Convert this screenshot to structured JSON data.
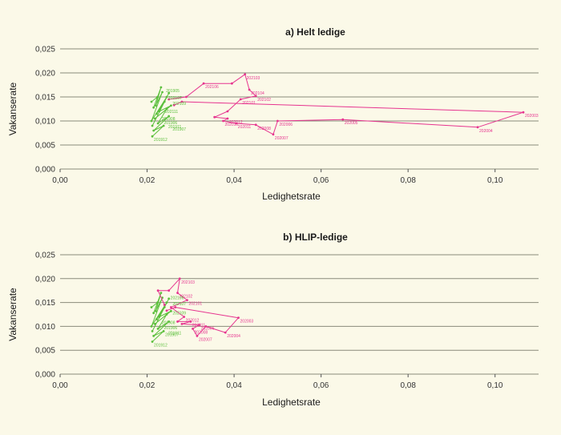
{
  "chart_data": [
    {
      "type": "line",
      "title": "a) Helt ledige",
      "xlabel": "Ledighetsrate",
      "ylabel": "Vakanserate",
      "xlim": [
        0,
        0.11
      ],
      "ylim": [
        0,
        0.025
      ],
      "grid": true,
      "x_ticks": [
        "0,00",
        "0,02",
        "0,04",
        "0,06",
        "0,08",
        "0,10"
      ],
      "y_ticks": [
        "0,000",
        "0,005",
        "0,010",
        "0,015",
        "0,020",
        "0,025"
      ],
      "colors": {
        "green": "#5bbf3c",
        "pink": "#e6348f"
      },
      "series": [
        {
          "color": "green",
          "points": [
            {
              "x": 0.021,
              "y": 0.014,
              "label": ""
            },
            {
              "x": 0.0224,
              "y": 0.015,
              "label": ""
            },
            {
              "x": 0.0215,
              "y": 0.0128,
              "label": ""
            },
            {
              "x": 0.0232,
              "y": 0.017,
              "label": ""
            },
            {
              "x": 0.022,
              "y": 0.0132,
              "label": ""
            },
            {
              "x": 0.0235,
              "y": 0.016,
              "label": ""
            },
            {
              "x": 0.021,
              "y": 0.01,
              "label": ""
            },
            {
              "x": 0.0245,
              "y": 0.015,
              "label": ""
            },
            {
              "x": 0.0222,
              "y": 0.0115,
              "label": ""
            },
            {
              "x": 0.024,
              "y": 0.014,
              "label": ""
            },
            {
              "x": 0.0212,
              "y": 0.009,
              "label": ""
            },
            {
              "x": 0.025,
              "y": 0.0158,
              "label": ""
            },
            {
              "x": 0.0228,
              "y": 0.012,
              "label": ""
            },
            {
              "x": 0.0255,
              "y": 0.0132,
              "label": ""
            },
            {
              "x": 0.0218,
              "y": 0.0105,
              "label": ""
            },
            {
              "x": 0.0245,
              "y": 0.0125,
              "label": ""
            },
            {
              "x": 0.0225,
              "y": 0.0095,
              "label": ""
            },
            {
              "x": 0.025,
              "y": 0.011,
              "label": ""
            },
            {
              "x": 0.0215,
              "y": 0.008,
              "label": ""
            },
            {
              "x": 0.0238,
              "y": 0.009,
              "label": ""
            },
            {
              "x": 0.0212,
              "y": 0.0068,
              "label": "201912"
            }
          ]
        },
        {
          "color": "pink",
          "points": [
            {
              "x": 0.025,
              "y": 0.0145,
              "label": ""
            },
            {
              "x": 0.029,
              "y": 0.015,
              "label": ""
            },
            {
              "x": 0.033,
              "y": 0.0178,
              "label": "202106"
            },
            {
              "x": 0.0395,
              "y": 0.0178,
              "label": ""
            },
            {
              "x": 0.0425,
              "y": 0.0197,
              "label": "202103"
            },
            {
              "x": 0.0435,
              "y": 0.0165,
              "label": "202104"
            },
            {
              "x": 0.045,
              "y": 0.0152,
              "label": "202102"
            },
            {
              "x": 0.0415,
              "y": 0.0145,
              "label": "202101"
            },
            {
              "x": 0.0385,
              "y": 0.012,
              "label": ""
            },
            {
              "x": 0.0355,
              "y": 0.0108,
              "label": ""
            },
            {
              "x": 0.0385,
              "y": 0.0105,
              "label": "202012"
            },
            {
              "x": 0.0375,
              "y": 0.01,
              "label": "202010"
            },
            {
              "x": 0.0405,
              "y": 0.0095,
              "label": "202011"
            },
            {
              "x": 0.045,
              "y": 0.0092,
              "label": "202008"
            },
            {
              "x": 0.049,
              "y": 0.0072,
              "label": "202007"
            },
            {
              "x": 0.05,
              "y": 0.01,
              "label": "202006"
            },
            {
              "x": 0.065,
              "y": 0.0103,
              "label": "202005"
            },
            {
              "x": 0.096,
              "y": 0.0087,
              "label": "202004"
            },
            {
              "x": 0.1065,
              "y": 0.0118,
              "label": "202003"
            },
            {
              "x": 0.028,
              "y": 0.014,
              "label": ""
            },
            {
              "x": 0.0262,
              "y": 0.0133,
              "label": ""
            }
          ]
        }
      ],
      "extra_labels": [
        {
          "x": 0.0245,
          "y": 0.0148,
          "label": "202107",
          "color": "green"
        },
        {
          "x": 0.0255,
          "y": 0.0137,
          "label": "202109",
          "color": "green"
        },
        {
          "x": 0.0238,
          "y": 0.012,
          "label": "202111",
          "color": "green"
        },
        {
          "x": 0.0235,
          "y": 0.0097,
          "label": "201906",
          "color": "green"
        },
        {
          "x": 0.0255,
          "y": 0.0083,
          "label": "201907",
          "color": "green"
        },
        {
          "x": 0.0245,
          "y": 0.0088,
          "label": "201911",
          "color": "green"
        },
        {
          "x": 0.023,
          "y": 0.0105,
          "label": "201908",
          "color": "green"
        },
        {
          "x": 0.024,
          "y": 0.0163,
          "label": "201905",
          "color": "green"
        }
      ]
    },
    {
      "type": "line",
      "title": "b) HLIP-ledige",
      "xlabel": "Ledighetsrate",
      "ylabel": "Vakanserate",
      "xlim": [
        0,
        0.11
      ],
      "ylim": [
        0,
        0.025
      ],
      "grid": true,
      "x_ticks": [
        "0,00",
        "0,02",
        "0,04",
        "0,06",
        "0,08",
        "0,10"
      ],
      "y_ticks": [
        "0,000",
        "0,005",
        "0,010",
        "0,015",
        "0,020",
        "0,025"
      ],
      "colors": {
        "green": "#5bbf3c",
        "pink": "#e6348f"
      },
      "series": [
        {
          "color": "green",
          "points": [
            {
              "x": 0.021,
              "y": 0.014,
              "label": ""
            },
            {
              "x": 0.0224,
              "y": 0.015,
              "label": ""
            },
            {
              "x": 0.0215,
              "y": 0.0128,
              "label": ""
            },
            {
              "x": 0.0232,
              "y": 0.017,
              "label": ""
            },
            {
              "x": 0.022,
              "y": 0.0132,
              "label": ""
            },
            {
              "x": 0.0235,
              "y": 0.016,
              "label": ""
            },
            {
              "x": 0.021,
              "y": 0.01,
              "label": ""
            },
            {
              "x": 0.0245,
              "y": 0.015,
              "label": ""
            },
            {
              "x": 0.0222,
              "y": 0.0115,
              "label": ""
            },
            {
              "x": 0.024,
              "y": 0.014,
              "label": ""
            },
            {
              "x": 0.0212,
              "y": 0.009,
              "label": ""
            },
            {
              "x": 0.025,
              "y": 0.0158,
              "label": ""
            },
            {
              "x": 0.0228,
              "y": 0.012,
              "label": ""
            },
            {
              "x": 0.0255,
              "y": 0.0132,
              "label": ""
            },
            {
              "x": 0.0218,
              "y": 0.0105,
              "label": ""
            },
            {
              "x": 0.0245,
              "y": 0.0125,
              "label": ""
            },
            {
              "x": 0.0225,
              "y": 0.0095,
              "label": ""
            },
            {
              "x": 0.025,
              "y": 0.011,
              "label": ""
            },
            {
              "x": 0.0215,
              "y": 0.008,
              "label": ""
            },
            {
              "x": 0.0238,
              "y": 0.009,
              "label": "201907"
            },
            {
              "x": 0.0212,
              "y": 0.0068,
              "label": "201912"
            }
          ]
        },
        {
          "color": "pink",
          "points": [
            {
              "x": 0.024,
              "y": 0.0145,
              "label": ""
            },
            {
              "x": 0.0225,
              "y": 0.0175,
              "label": ""
            },
            {
              "x": 0.025,
              "y": 0.0175,
              "label": ""
            },
            {
              "x": 0.0275,
              "y": 0.02,
              "label": "202103"
            },
            {
              "x": 0.027,
              "y": 0.017,
              "label": "202102"
            },
            {
              "x": 0.0292,
              "y": 0.0155,
              "label": "202101"
            },
            {
              "x": 0.0255,
              "y": 0.014,
              "label": ""
            },
            {
              "x": 0.0285,
              "y": 0.012,
              "label": "202012"
            },
            {
              "x": 0.027,
              "y": 0.011,
              "label": ""
            },
            {
              "x": 0.03,
              "y": 0.011,
              "label": "202011"
            },
            {
              "x": 0.028,
              "y": 0.0105,
              "label": ""
            },
            {
              "x": 0.032,
              "y": 0.0103,
              "label": "202006"
            },
            {
              "x": 0.0305,
              "y": 0.0095,
              "label": "202008"
            },
            {
              "x": 0.0315,
              "y": 0.008,
              "label": "202007"
            },
            {
              "x": 0.0335,
              "y": 0.01,
              "label": ""
            },
            {
              "x": 0.038,
              "y": 0.0087,
              "label": "202004"
            },
            {
              "x": 0.041,
              "y": 0.0118,
              "label": "202003"
            },
            {
              "x": 0.0265,
              "y": 0.014,
              "label": ""
            },
            {
              "x": 0.0245,
              "y": 0.0133,
              "label": ""
            }
          ]
        }
      ],
      "extra_labels": [
        {
          "x": 0.025,
          "y": 0.016,
          "label": "202106",
          "color": "green"
        },
        {
          "x": 0.0255,
          "y": 0.0148,
          "label": "202107",
          "color": "green"
        },
        {
          "x": 0.0235,
          "y": 0.0097,
          "label": "201906",
          "color": "green"
        },
        {
          "x": 0.0245,
          "y": 0.0086,
          "label": "201911",
          "color": "green"
        },
        {
          "x": 0.023,
          "y": 0.0108,
          "label": "201908",
          "color": "green"
        },
        {
          "x": 0.0255,
          "y": 0.0128,
          "label": "202109",
          "color": "green"
        }
      ]
    }
  ]
}
